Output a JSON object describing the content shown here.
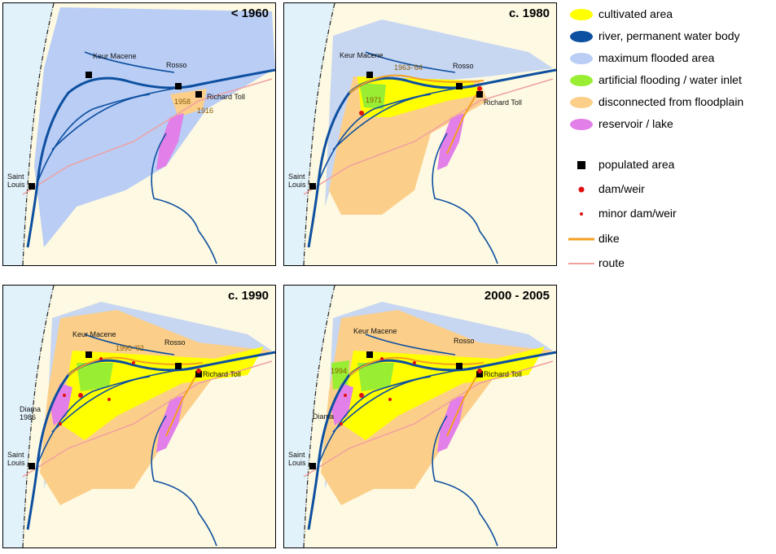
{
  "panels": [
    {
      "title": "< 1960",
      "labels": [
        "Keur Macene",
        "Rosso",
        "Richard Toll",
        "1958",
        "1916",
        "Saint Louis"
      ]
    },
    {
      "title": "c. 1980",
      "labels": [
        "Keur Macene",
        "1963-'64",
        "Rosso",
        "Richard Toll",
        "1971",
        "Saint Louis"
      ]
    },
    {
      "title": "c. 1990",
      "labels": [
        "Keur Macene",
        "1990-'92",
        "Rosso",
        "Richard Toll",
        "Diama 1986",
        "Saint Louis"
      ]
    },
    {
      "title": "2000 - 2005",
      "labels": [
        "Keur Macene",
        "Rosso",
        "Richard Toll",
        "1994",
        "Diama",
        "Saint Louis"
      ]
    }
  ],
  "legend": {
    "areas": [
      {
        "label": "cultivated area",
        "color": "#ffff00"
      },
      {
        "label": "river, permanent water body",
        "color": "#0d4fa0"
      },
      {
        "label": "maximum flooded area",
        "color": "#b9cdf5"
      },
      {
        "label": "artificial flooding / water inlet",
        "color": "#99ee33"
      },
      {
        "label": "disconnected from floodplain",
        "color": "#fbcf8a"
      },
      {
        "label": "reservoir / lake",
        "color": "#e27fe8"
      }
    ],
    "symbols": [
      {
        "label": "populated area",
        "color": "#000000"
      },
      {
        "label": "dam/weir",
        "color": "#e01010"
      },
      {
        "label": "minor dam/weir",
        "color": "#e01010"
      },
      {
        "label": "dike",
        "color": "#f5a020"
      },
      {
        "label": "route",
        "color": "#f0a0a0"
      }
    ]
  }
}
